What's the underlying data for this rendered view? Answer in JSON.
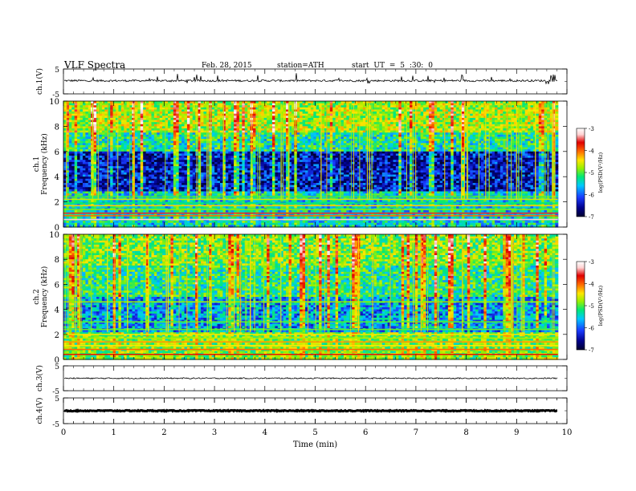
{
  "header": {
    "title": "VLF  Spectra",
    "date": "Feb. 28, 2015",
    "station": "station=ATH",
    "start": "start  UT  =   5  :30: 0"
  },
  "chart_data": [
    {
      "type": "line",
      "panel": "ch1-waveform",
      "ylabel": "ch.1(V)",
      "ylim": [
        -5,
        5
      ],
      "y_ticks": [
        "5",
        "-5"
      ],
      "x_range": [
        0,
        10
      ],
      "baseline": 0.3,
      "noise": 0.4,
      "spikes": true,
      "trace_color": "#000000"
    },
    {
      "type": "heatmap",
      "panel": "ch1-spectrogram",
      "ylabel": "ch.1",
      "ylabel2": "Frequency  (kHz)",
      "ylim": [
        0,
        10
      ],
      "y_ticks": [
        "0",
        "2",
        "4",
        "6",
        "8",
        "10"
      ],
      "x_range": [
        0,
        9.82
      ],
      "colorbar": {
        "label": "log(PSD(V²/Hz)",
        "range": [
          -7,
          -3
        ],
        "ticks": [
          "-3",
          "-4",
          "-5",
          "-6",
          "-7"
        ]
      },
      "colormap": [
        "#000030",
        "#00008c",
        "#1a3cff",
        "#00c8ff",
        "#00e878",
        "#9af000",
        "#ffe600",
        "#ff6a00",
        "#e00000",
        "#ffd2d2",
        "#ffffff"
      ]
    },
    {
      "type": "heatmap",
      "panel": "ch2-spectrogram",
      "ylabel": "ch.2",
      "ylabel2": "Frequency  (kHz)",
      "ylim": [
        0,
        10
      ],
      "y_ticks": [
        "0",
        "2",
        "4",
        "6",
        "8",
        "10"
      ],
      "x_range": [
        0,
        9.82
      ],
      "colorbar": {
        "label": "log(PSD(V²/Hz)",
        "range": [
          -7,
          -3
        ],
        "ticks": [
          "-3",
          "-4",
          "-5",
          "-6",
          "-7"
        ]
      }
    },
    {
      "type": "line",
      "panel": "ch3-waveform",
      "ylabel": "ch.3(V)",
      "ylim": [
        -5,
        5
      ],
      "y_ticks": [
        "5",
        "-5"
      ],
      "x_range": [
        0,
        10
      ],
      "baseline": 0.0,
      "noise": 0.25,
      "spikes": false,
      "trace_color": "#000000"
    },
    {
      "type": "line",
      "panel": "ch4-waveform",
      "ylabel": "ch.4(V)",
      "ylim": [
        -5,
        5
      ],
      "y_ticks": [
        "5",
        "-5"
      ],
      "x_range": [
        0,
        10
      ],
      "baseline": 0.0,
      "noise": 0.2,
      "spikes": false,
      "thick": true,
      "trace_color": "#000000"
    }
  ],
  "x_axis": {
    "label": "Time  (min)",
    "ticks": [
      "0",
      "1",
      "2",
      "3",
      "4",
      "5",
      "6",
      "7",
      "8",
      "9",
      "10"
    ],
    "range": [
      0,
      10
    ]
  }
}
